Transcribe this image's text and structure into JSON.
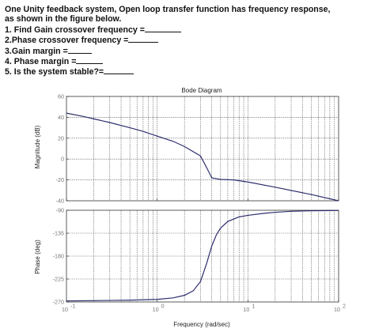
{
  "question": {
    "intro_line1": "One Unity feedback system, Open loop transfer function has frequency response,",
    "intro_line2": "as shown in the figure below.",
    "items": [
      {
        "text": "1. Find Gain crossover frequency =",
        "blank_width": 46
      },
      {
        "text": "2.Phase crossover frequency =",
        "blank_width": 38
      },
      {
        "text": "3.Gain margin =",
        "blank_width": 30
      },
      {
        "text": "4. Phase margin =",
        "blank_width": 34
      },
      {
        "text": "5. Is the system stable?=",
        "blank_width": 38
      }
    ]
  },
  "chart_data": {
    "type": "line",
    "title": "Bode Diagram",
    "xlabel": "Frequency  (rad/sec)",
    "xscale": "log",
    "xlim": [
      0.1,
      100
    ],
    "xtick_labels": [
      {
        "base": "10",
        "exp": "-1",
        "value": 0.1
      },
      {
        "base": "10",
        "exp": "0",
        "value": 1
      },
      {
        "base": "10",
        "exp": "1",
        "value": 10
      },
      {
        "base": "10",
        "exp": "2",
        "value": 100
      }
    ],
    "grid": true,
    "magnitude": {
      "ylabel": "Magnitude (dB)",
      "ylim": [
        -40,
        60
      ],
      "yticks": [
        60,
        40,
        20,
        0,
        -20,
        -40
      ],
      "series": [
        {
          "color": "#2e2e6e",
          "x": [
            0.1,
            0.15,
            0.2,
            0.3,
            0.5,
            0.7,
            1.0,
            1.5,
            2.0,
            3.0,
            3.5,
            4.0,
            5.0,
            7.0,
            10,
            20,
            50,
            100
          ],
          "y": [
            44,
            41,
            38.5,
            35,
            30,
            26.5,
            22,
            17,
            12,
            3,
            -8,
            -18,
            -19.5,
            -20,
            -22,
            -27,
            -34,
            -40
          ]
        }
      ]
    },
    "phase": {
      "ylabel": "Phase (deg)",
      "ylim": [
        -270,
        -90
      ],
      "yticks": [
        -90,
        -135,
        -180,
        -225,
        -270
      ],
      "series": [
        {
          "color": "#2e2e6e",
          "x": [
            0.1,
            0.3,
            0.5,
            1.0,
            1.5,
            2.0,
            2.5,
            3.0,
            3.5,
            4.0,
            4.5,
            5.0,
            6.0,
            8.0,
            10,
            15,
            20,
            30,
            50,
            100
          ],
          "y": [
            -268,
            -267,
            -266.5,
            -265,
            -262,
            -257,
            -248,
            -230,
            -195,
            -160,
            -138,
            -125,
            -112,
            -103,
            -100,
            -96,
            -94,
            -92,
            -91,
            -90.5
          ]
        }
      ]
    }
  }
}
